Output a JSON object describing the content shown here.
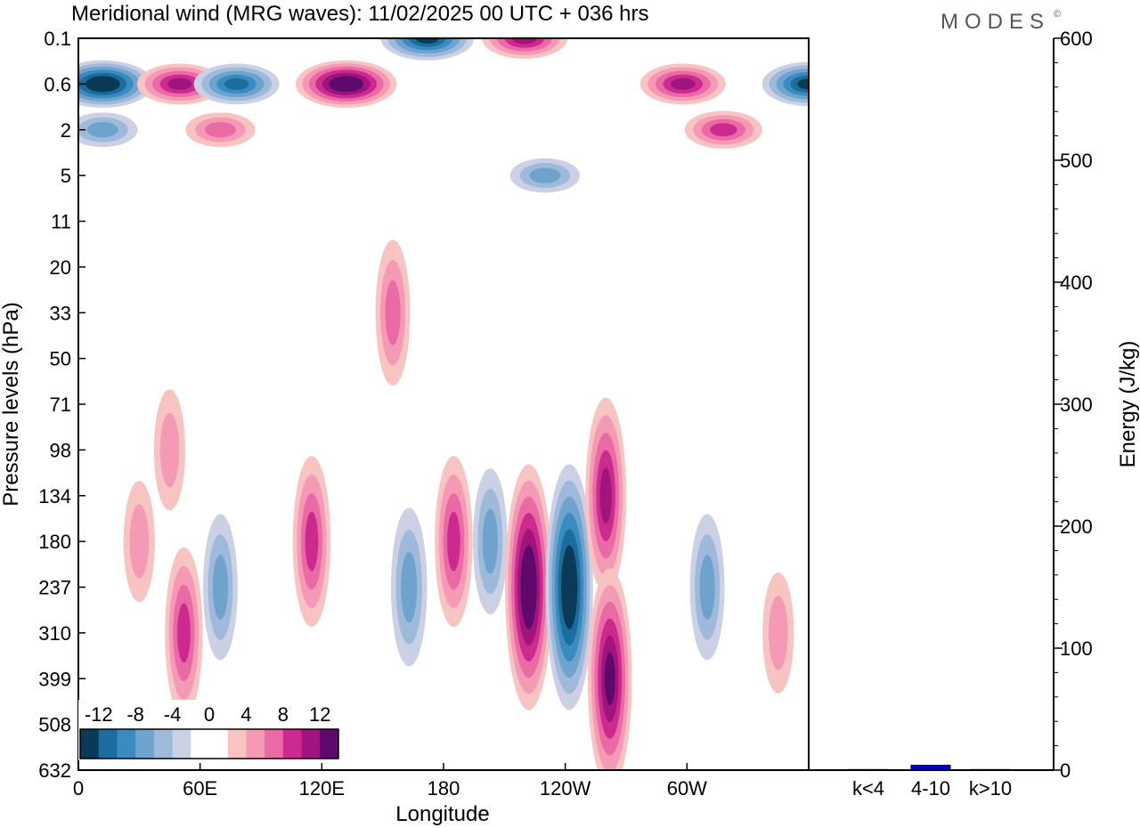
{
  "title": "Meridional wind (MRG waves):  11/02/2025  00 UTC  + 036 hrs",
  "brand": "MODES",
  "brand_mark": "©",
  "chart_data": [
    {
      "type": "heatmap",
      "title": "Meridional wind (MRG waves):  11/02/2025  00 UTC  + 036 hrs",
      "xlabel": "Longitude",
      "ylabel": "Pressure levels (hPa)",
      "x_ticks": [
        "0",
        "60E",
        "120E",
        "180",
        "120W",
        "60W"
      ],
      "y_ticks": [
        "0.1",
        "0.6",
        "2",
        "5",
        "11",
        "20",
        "33",
        "50",
        "71",
        "98",
        "134",
        "180",
        "237",
        "310",
        "399",
        "508",
        "632"
      ],
      "colorbar": {
        "labels": [
          "-12",
          "-8",
          "-4",
          "0",
          "4",
          "8",
          "12"
        ],
        "colors": [
          "#0a3a58",
          "#1a6d9c",
          "#3a8cc0",
          "#6da3cc",
          "#9fb9da",
          "#ccd0e5",
          "#ffffff",
          "#ffffff",
          "#f8c4c2",
          "#f59ab5",
          "#ea6aa6",
          "#cc2a8e",
          "#a0157d",
          "#5e0a6c"
        ]
      },
      "features": [
        {
          "lon": 12,
          "level": "0.6",
          "value": -14
        },
        {
          "lon": 50,
          "level": "0.6",
          "value": 10
        },
        {
          "lon": 78,
          "level": "0.6",
          "value": -10
        },
        {
          "lon": 132,
          "level": "0.6",
          "value": 14
        },
        {
          "lon": 172,
          "level": "0.1",
          "value": -12
        },
        {
          "lon": 220,
          "level": "0.1",
          "value": 10
        },
        {
          "lon": 298,
          "level": "0.6",
          "value": 10
        },
        {
          "lon": 360,
          "level": "0.6",
          "value": -12
        },
        {
          "lon": 12,
          "level": "2",
          "value": -6
        },
        {
          "lon": 70,
          "level": "2",
          "value": 6
        },
        {
          "lon": 230,
          "level": "5",
          "value": -6
        },
        {
          "lon": 318,
          "level": "2",
          "value": 8
        },
        {
          "lon": 155,
          "level": "33",
          "value": 6
        },
        {
          "lon": 45,
          "level": "98",
          "value": 4
        },
        {
          "lon": 70,
          "level": "237",
          "value": -6
        },
        {
          "lon": 52,
          "level": "310",
          "value": 8
        },
        {
          "lon": 30,
          "level": "180",
          "value": 4
        },
        {
          "lon": 115,
          "level": "180",
          "value": 8
        },
        {
          "lon": 163,
          "level": "237",
          "value": -7
        },
        {
          "lon": 185,
          "level": "180",
          "value": 8
        },
        {
          "lon": 203,
          "level": "180",
          "value": -6
        },
        {
          "lon": 222,
          "level": "237",
          "value": 14
        },
        {
          "lon": 242,
          "level": "237",
          "value": -14
        },
        {
          "lon": 260,
          "level": "134",
          "value": 10
        },
        {
          "lon": 262,
          "level": "399",
          "value": 12
        },
        {
          "lon": 310,
          "level": "237",
          "value": -6
        },
        {
          "lon": 345,
          "level": "310",
          "value": 4
        }
      ]
    },
    {
      "type": "bar",
      "ylabel": "Energy (J/kg)",
      "categories": [
        "k<4",
        "4-10",
        "k>10"
      ],
      "values": [
        0.5,
        4,
        0.5
      ],
      "ylim": [
        0,
        600
      ],
      "y_ticks": [
        "0",
        "100",
        "200",
        "300",
        "400",
        "500",
        "600"
      ],
      "bar_color": "#0000cc"
    }
  ]
}
